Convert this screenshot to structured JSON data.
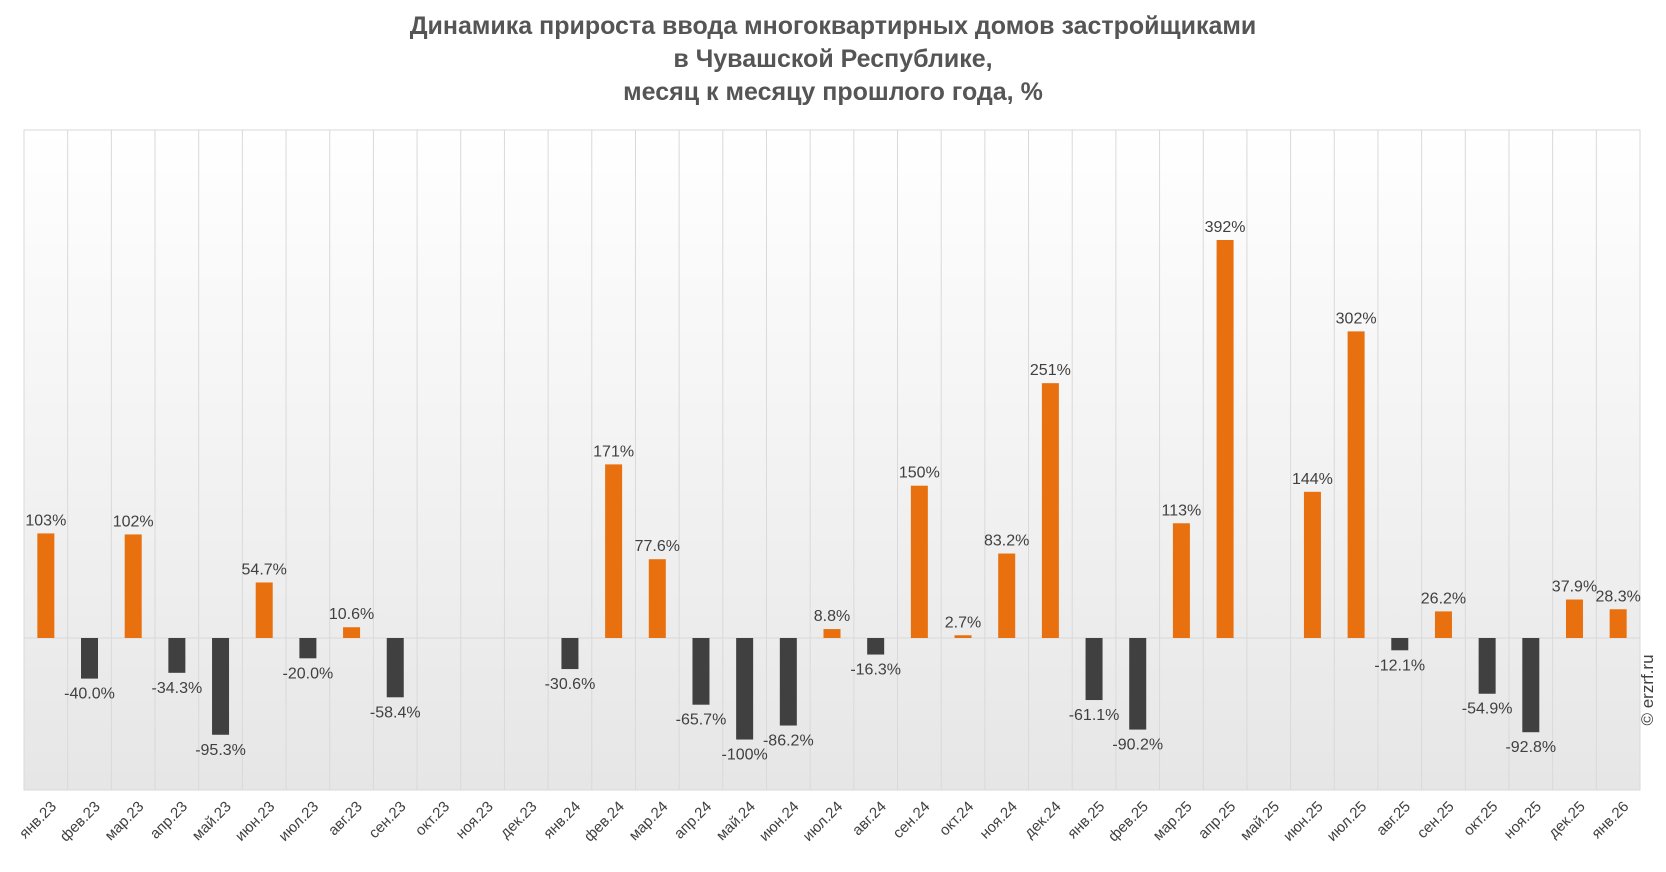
{
  "chart_data": {
    "type": "bar",
    "title_lines": [
      "Динамика прироста ввода многоквартирных домов застройщиками",
      "в Чувашской Республике,",
      "месяц к месяцу прошлого года, %"
    ],
    "categories": [
      "янв.23",
      "фев.23",
      "мар.23",
      "апр.23",
      "май.23",
      "июн.23",
      "июл.23",
      "авг.23",
      "сен.23",
      "окт.23",
      "ноя.23",
      "дек.23",
      "янв.24",
      "фев.24",
      "мар.24",
      "апр.24",
      "май.24",
      "июн.24",
      "июл.24",
      "авг.24",
      "сен.24",
      "окт.24",
      "ноя.24",
      "дек.24",
      "янв.25",
      "фев.25",
      "мар.25",
      "апр.25",
      "май.25",
      "июн.25",
      "июл.25",
      "авг.25",
      "сен.25",
      "окт.25",
      "ноя.25",
      "дек.25",
      "янв.26"
    ],
    "values": [
      103,
      -40.0,
      102,
      -34.3,
      -95.3,
      54.7,
      -20.0,
      10.6,
      -58.4,
      null,
      null,
      null,
      -30.6,
      171,
      77.6,
      -65.7,
      -100,
      -86.2,
      8.8,
      -16.3,
      150,
      2.7,
      83.2,
      251,
      -61.1,
      -90.2,
      113,
      392,
      null,
      144,
      302,
      -12.1,
      26.2,
      -54.9,
      -92.8,
      37.9,
      28.3
    ],
    "labels": [
      "103%",
      "-40.0%",
      "102%",
      "-34.3%",
      "-95.3%",
      "54.7%",
      "-20.0%",
      "10.6%",
      "-58.4%",
      "",
      "",
      "",
      "-30.6%",
      "171%",
      "77.6%",
      "-65.7%",
      "-100%",
      "-86.2%",
      "8.8%",
      "-16.3%",
      "150%",
      "2.7%",
      "83.2%",
      "251%",
      "-61.1%",
      "-90.2%",
      "113%",
      "392%",
      "",
      "144%",
      "302%",
      "-12.1%",
      "26.2%",
      "-54.9%",
      "-92.8%",
      "37.9%",
      "28.3%"
    ],
    "ylim": [
      -150,
      500
    ],
    "grid": "vertical",
    "colors": {
      "positive": "#e8700f",
      "negative": "#404040",
      "grid": "#d9d9d9",
      "plot_bg_top": "#ffffff",
      "plot_bg_bottom": "#e6e6e6"
    }
  },
  "watermark": "© erzrf.ru"
}
